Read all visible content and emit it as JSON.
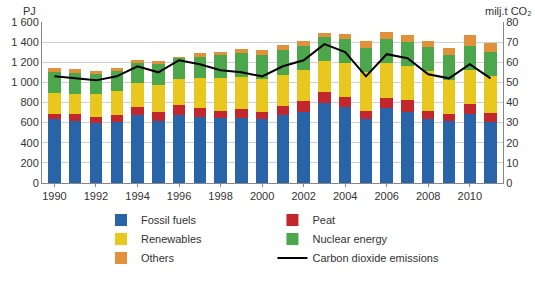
{
  "chart_data": {
    "type": "bar",
    "stacked": true,
    "y_label": "PJ",
    "y2_label": "milj.t CO₂",
    "categories": [
      "1990",
      null,
      "1992",
      null,
      "1994",
      null,
      "1996",
      null,
      "1998",
      null,
      "2000",
      null,
      "2002",
      null,
      "2004",
      null,
      "2006",
      null,
      "2008",
      null,
      "2010",
      null
    ],
    "series": [
      {
        "name": "Fossil fuels",
        "color": "#2a64a8",
        "values": [
          640,
          620,
          600,
          610,
          680,
          620,
          680,
          660,
          650,
          650,
          640,
          680,
          710,
          800,
          760,
          640,
          750,
          710,
          640,
          620,
          690,
          610
        ]
      },
      {
        "name": "Peat",
        "color": "#c1272d",
        "values": [
          50,
          65,
          60,
          70,
          80,
          90,
          100,
          90,
          70,
          90,
          70,
          90,
          100,
          100,
          90,
          80,
          90,
          110,
          80,
          70,
          100,
          90
        ]
      },
      {
        "name": "Renewables",
        "color": "#e8c81e",
        "values": [
          205,
          200,
          220,
          230,
          230,
          260,
          250,
          290,
          320,
          310,
          320,
          300,
          310,
          310,
          340,
          380,
          350,
          340,
          390,
          330,
          330,
          360
        ]
      },
      {
        "name": "Nuclear energy",
        "color": "#4ca64c",
        "values": [
          205,
          205,
          200,
          205,
          200,
          210,
          210,
          215,
          230,
          240,
          245,
          250,
          240,
          240,
          245,
          240,
          240,
          240,
          240,
          250,
          240,
          240
        ]
      },
      {
        "name": "Others",
        "color": "#e0913a",
        "values": [
          40,
          40,
          30,
          30,
          35,
          30,
          15,
          35,
          30,
          40,
          45,
          50,
          50,
          40,
          45,
          70,
          70,
          70,
          60,
          70,
          110,
          90
        ]
      },
      {
        "name": "Carbon dioxide emissions",
        "color": "#000000",
        "type": "line",
        "axis": "y2",
        "values": [
          53,
          52,
          51,
          53,
          58,
          55,
          61,
          59,
          56,
          55,
          53,
          58,
          61,
          69,
          65,
          53,
          64,
          62,
          54,
          52,
          59,
          52
        ]
      }
    ],
    "ylim": [
      0,
      1600
    ],
    "yticks": [
      0,
      200,
      400,
      600,
      800,
      {
        "value": 1000,
        "label": "1 000"
      },
      {
        "value": 1200,
        "label": "1 200"
      },
      {
        "value": 1400,
        "label": "1 400"
      },
      {
        "value": 1600,
        "label": "1 600"
      }
    ],
    "y2lim": [
      0,
      80
    ],
    "y2ticks": [
      0,
      10,
      20,
      30,
      40,
      50,
      60,
      70,
      80
    ],
    "grid": true,
    "legend": "bottom"
  }
}
